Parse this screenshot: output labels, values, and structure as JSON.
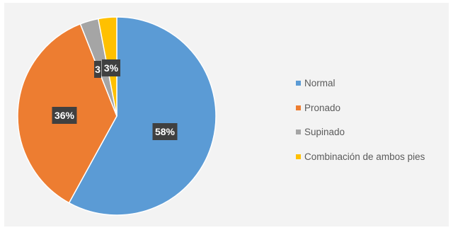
{
  "chart_data": {
    "type": "pie",
    "title": "",
    "labels": [
      "Normal",
      "Pronado",
      "Supinado",
      "Combinación de ambos pies"
    ],
    "values": [
      58,
      36,
      3,
      3
    ],
    "data_labels": [
      "58%",
      "36%",
      "3",
      "3%"
    ],
    "colors": [
      "#5b9bd5",
      "#ed7d31",
      "#a5a5a5",
      "#ffc000"
    ],
    "start_angle_deg": 0,
    "direction": "clockwise",
    "legend": "right"
  }
}
